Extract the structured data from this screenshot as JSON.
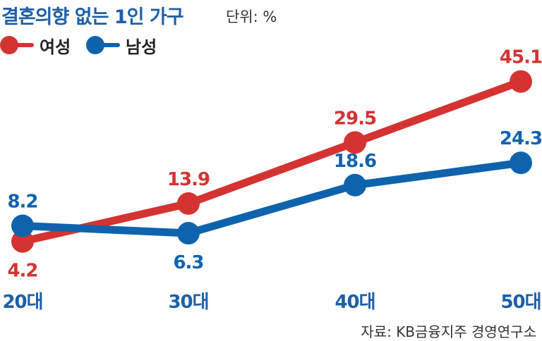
{
  "title": "결혼의향 없는 1인 가구",
  "unit": "단위: %",
  "source": "자료: KB금융지주 경영연구소",
  "colors": {
    "female": "#d43331",
    "male": "#0f63ad"
  },
  "chart_data": {
    "type": "line",
    "categories": [
      "20대",
      "30대",
      "40대",
      "50대"
    ],
    "series": [
      {
        "name": "여성",
        "values": [
          4.2,
          13.9,
          29.5,
          45.1
        ]
      },
      {
        "name": "남성",
        "values": [
          8.2,
          6.3,
          18.6,
          24.3
        ]
      }
    ],
    "grid": false,
    "legend_position": "top-left"
  }
}
